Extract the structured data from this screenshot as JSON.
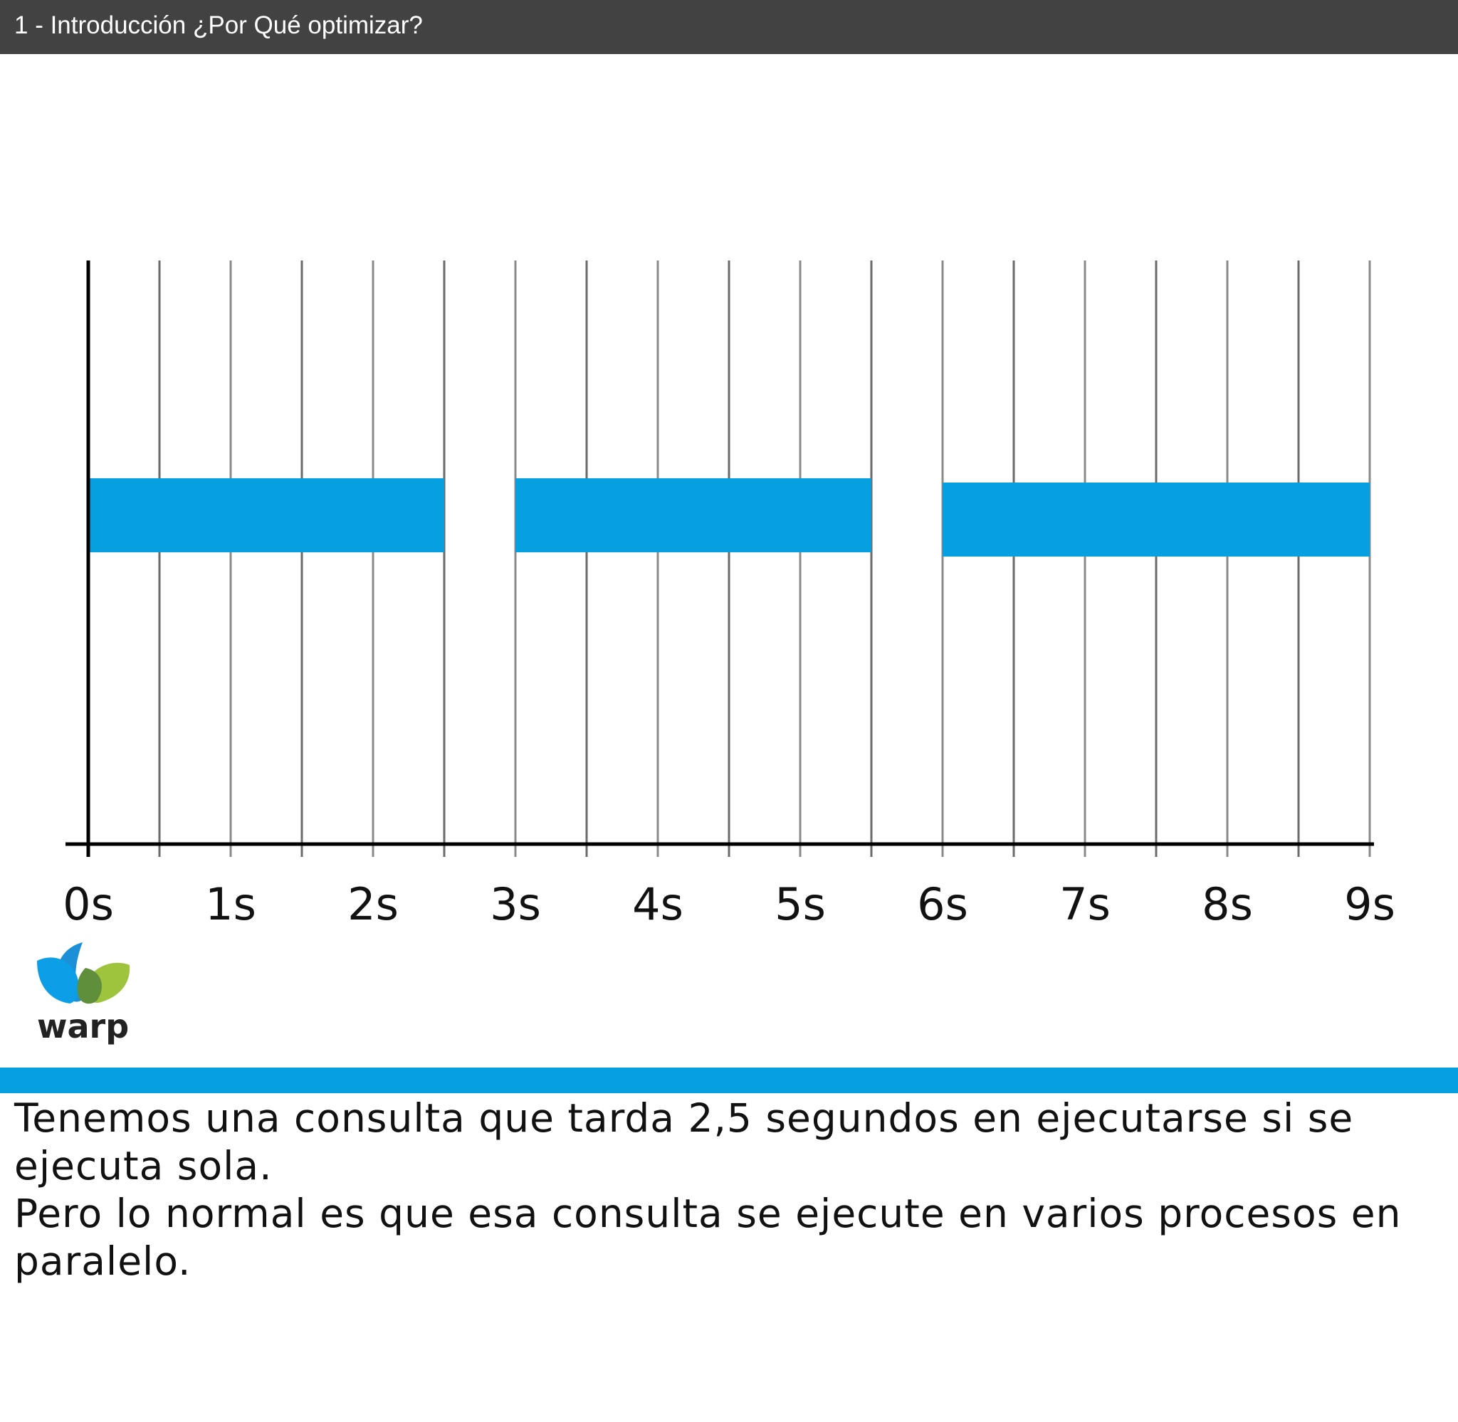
{
  "header": {
    "title": "1 - Introducción ¿Por Qué optimizar?"
  },
  "chart_data": {
    "type": "timeline",
    "x_unit": "s",
    "xlim": [
      0,
      9
    ],
    "tick_labels": [
      "0s",
      "1s",
      "2s",
      "3s",
      "4s",
      "5s",
      "6s",
      "7s",
      "8s",
      "9s"
    ],
    "tick_values": [
      0,
      1,
      2,
      3,
      4,
      5,
      6,
      7,
      8,
      9
    ],
    "gridline_step": 0.5,
    "bars": [
      {
        "start": 0,
        "end": 2.5
      },
      {
        "start": 3,
        "end": 5.5
      },
      {
        "start": 6,
        "end": 9
      }
    ],
    "bar_color": "#069fe0",
    "grid": true
  },
  "logo": {
    "text": "warp"
  },
  "notes": {
    "line1": "Tenemos una consulta que tarda 2,5 segundos en ejecutarse si se ejecuta sola.",
    "line2": "Pero lo normal es que esa consulta se ejecute en varios procesos en paralelo."
  },
  "colors": {
    "header_bg": "#424242",
    "accent": "#069fe0"
  }
}
